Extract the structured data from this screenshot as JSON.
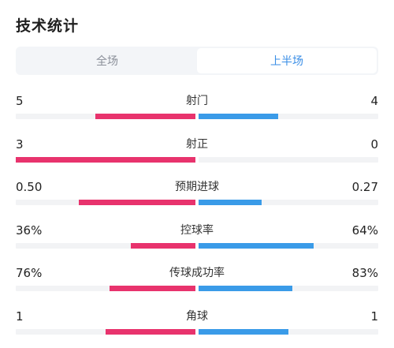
{
  "header": {
    "title": "技术统计"
  },
  "tabs": [
    {
      "label": "全场",
      "active": false
    },
    {
      "label": "上半场",
      "active": true
    }
  ],
  "colors": {
    "home": "#e8336d",
    "away": "#3a9be8",
    "track": "#f2f3f5"
  },
  "stats": [
    {
      "label": "射门",
      "home": "5",
      "away": "4",
      "home_share": 0.556,
      "away_share": 0.444
    },
    {
      "label": "射正",
      "home": "3",
      "away": "0",
      "home_share": 1.0,
      "away_share": 0.0
    },
    {
      "label": "预期进球",
      "home": "0.50",
      "away": "0.27",
      "home_share": 0.649,
      "away_share": 0.351
    },
    {
      "label": "控球率",
      "home": "36%",
      "away": "64%",
      "home_share": 0.36,
      "away_share": 0.64
    },
    {
      "label": "传球成功率",
      "home": "76%",
      "away": "83%",
      "home_share": 0.478,
      "away_share": 0.522
    },
    {
      "label": "角球",
      "home": "1",
      "away": "1",
      "home_share": 0.5,
      "away_share": 0.5
    }
  ]
}
